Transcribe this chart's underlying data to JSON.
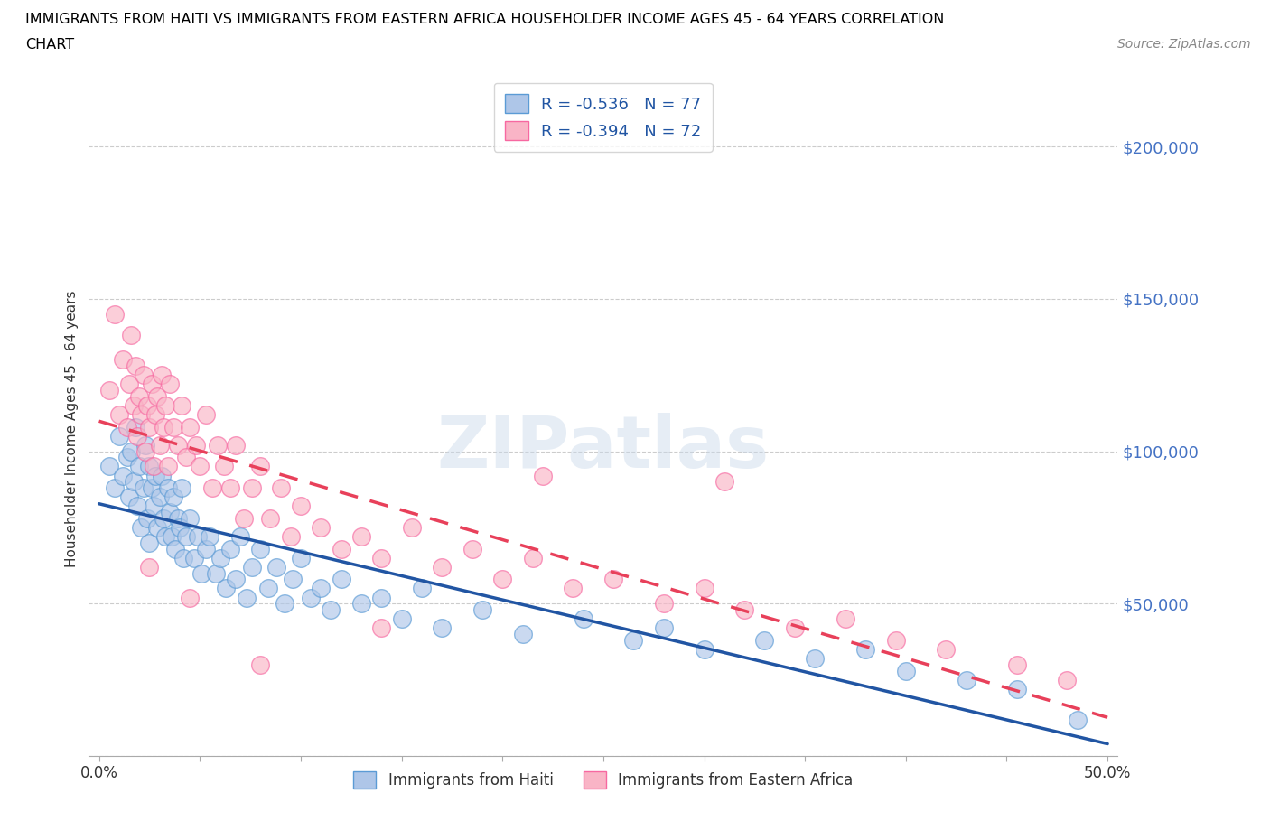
{
  "title_line1": "IMMIGRANTS FROM HAITI VS IMMIGRANTS FROM EASTERN AFRICA HOUSEHOLDER INCOME AGES 45 - 64 YEARS CORRELATION",
  "title_line2": "CHART",
  "source": "Source: ZipAtlas.com",
  "ylabel": "Householder Income Ages 45 - 64 years",
  "haiti_fill_color": "#aec6e8",
  "eastern_africa_fill_color": "#f9b4c6",
  "haiti_edge_color": "#5b9bd5",
  "eastern_africa_edge_color": "#f768a1",
  "haiti_line_color": "#2155a3",
  "eastern_africa_line_color": "#e8405a",
  "haiti_R": -0.536,
  "haiti_N": 77,
  "eastern_africa_R": -0.394,
  "eastern_africa_N": 72,
  "xlim": [
    -0.005,
    0.505
  ],
  "ylim": [
    0,
    215000
  ],
  "yticks": [
    0,
    50000,
    100000,
    150000,
    200000
  ],
  "ytick_labels": [
    "",
    "$50,000",
    "$100,000",
    "$150,000",
    "$200,000"
  ],
  "xticks": [
    0.0,
    0.05,
    0.1,
    0.15,
    0.2,
    0.25,
    0.3,
    0.35,
    0.4,
    0.45,
    0.5
  ],
  "xtick_labels": [
    "0.0%",
    "",
    "",
    "",
    "",
    "",
    "",
    "",
    "",
    "",
    "50.0%"
  ],
  "watermark": "ZIPatlas",
  "haiti_scatter_x": [
    0.005,
    0.008,
    0.01,
    0.012,
    0.014,
    0.015,
    0.016,
    0.017,
    0.018,
    0.019,
    0.02,
    0.021,
    0.022,
    0.023,
    0.024,
    0.025,
    0.025,
    0.026,
    0.027,
    0.028,
    0.029,
    0.03,
    0.031,
    0.032,
    0.033,
    0.034,
    0.035,
    0.036,
    0.037,
    0.038,
    0.039,
    0.04,
    0.041,
    0.042,
    0.043,
    0.045,
    0.047,
    0.049,
    0.051,
    0.053,
    0.055,
    0.058,
    0.06,
    0.063,
    0.065,
    0.068,
    0.07,
    0.073,
    0.076,
    0.08,
    0.084,
    0.088,
    0.092,
    0.096,
    0.1,
    0.105,
    0.11,
    0.115,
    0.12,
    0.13,
    0.14,
    0.15,
    0.16,
    0.17,
    0.19,
    0.21,
    0.24,
    0.265,
    0.28,
    0.3,
    0.33,
    0.355,
    0.38,
    0.4,
    0.43,
    0.455,
    0.485
  ],
  "haiti_scatter_y": [
    95000,
    88000,
    105000,
    92000,
    98000,
    85000,
    100000,
    90000,
    108000,
    82000,
    95000,
    75000,
    88000,
    102000,
    78000,
    95000,
    70000,
    88000,
    82000,
    92000,
    75000,
    85000,
    92000,
    78000,
    72000,
    88000,
    80000,
    72000,
    85000,
    68000,
    78000,
    75000,
    88000,
    65000,
    72000,
    78000,
    65000,
    72000,
    60000,
    68000,
    72000,
    60000,
    65000,
    55000,
    68000,
    58000,
    72000,
    52000,
    62000,
    68000,
    55000,
    62000,
    50000,
    58000,
    65000,
    52000,
    55000,
    48000,
    58000,
    50000,
    52000,
    45000,
    55000,
    42000,
    48000,
    40000,
    45000,
    38000,
    42000,
    35000,
    38000,
    32000,
    35000,
    28000,
    25000,
    22000,
    12000
  ],
  "eastern_africa_scatter_x": [
    0.005,
    0.008,
    0.01,
    0.012,
    0.014,
    0.015,
    0.016,
    0.017,
    0.018,
    0.019,
    0.02,
    0.021,
    0.022,
    0.023,
    0.024,
    0.025,
    0.026,
    0.027,
    0.028,
    0.029,
    0.03,
    0.031,
    0.032,
    0.033,
    0.034,
    0.035,
    0.037,
    0.039,
    0.041,
    0.043,
    0.045,
    0.048,
    0.05,
    0.053,
    0.056,
    0.059,
    0.062,
    0.065,
    0.068,
    0.072,
    0.076,
    0.08,
    0.085,
    0.09,
    0.095,
    0.1,
    0.11,
    0.12,
    0.13,
    0.14,
    0.155,
    0.17,
    0.185,
    0.2,
    0.215,
    0.235,
    0.255,
    0.28,
    0.3,
    0.32,
    0.345,
    0.37,
    0.395,
    0.42,
    0.455,
    0.48,
    0.31,
    0.22,
    0.14,
    0.08,
    0.045,
    0.025
  ],
  "eastern_africa_scatter_y": [
    120000,
    145000,
    112000,
    130000,
    108000,
    122000,
    138000,
    115000,
    128000,
    105000,
    118000,
    112000,
    125000,
    100000,
    115000,
    108000,
    122000,
    95000,
    112000,
    118000,
    102000,
    125000,
    108000,
    115000,
    95000,
    122000,
    108000,
    102000,
    115000,
    98000,
    108000,
    102000,
    95000,
    112000,
    88000,
    102000,
    95000,
    88000,
    102000,
    78000,
    88000,
    95000,
    78000,
    88000,
    72000,
    82000,
    75000,
    68000,
    72000,
    65000,
    75000,
    62000,
    68000,
    58000,
    65000,
    55000,
    58000,
    50000,
    55000,
    48000,
    42000,
    45000,
    38000,
    35000,
    30000,
    25000,
    90000,
    92000,
    42000,
    30000,
    52000,
    62000
  ]
}
